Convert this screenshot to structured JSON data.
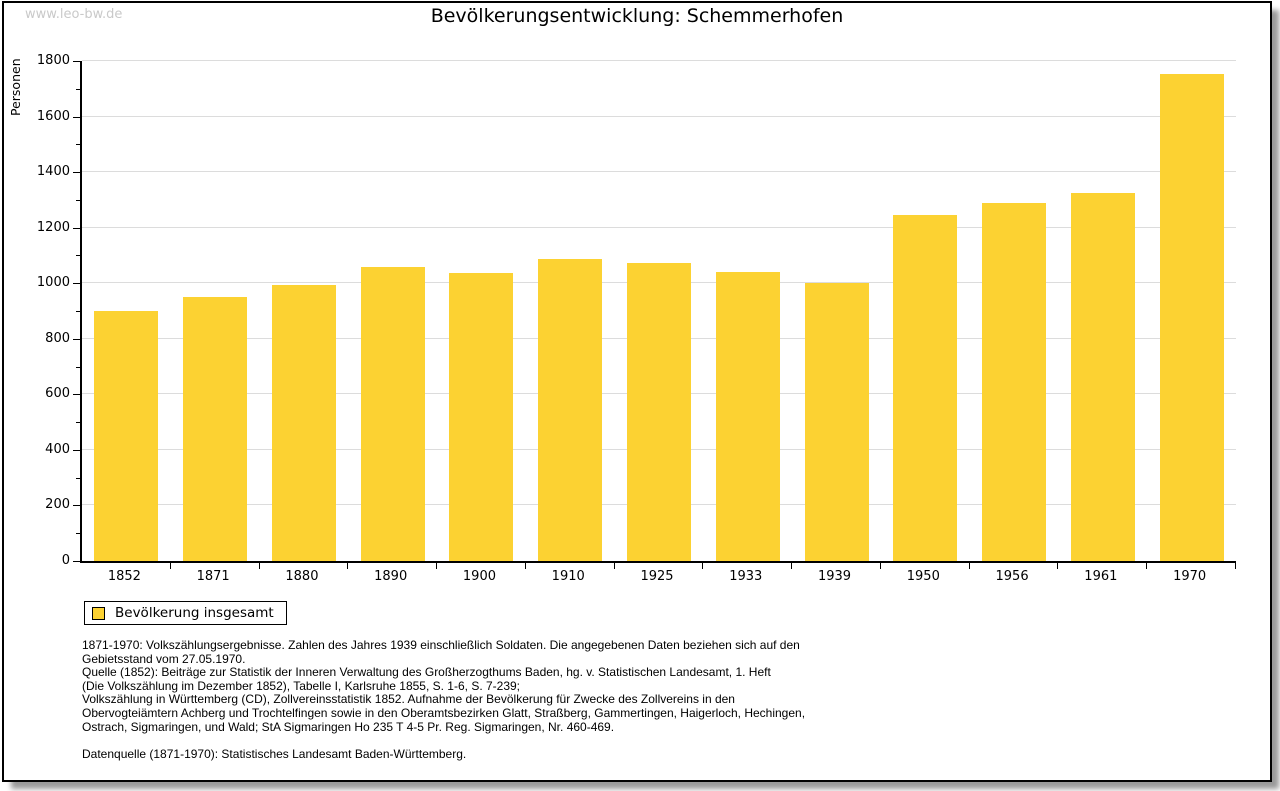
{
  "page": {
    "watermark": "www.leo-bw.de",
    "title": "Bevölkerungsentwicklung: Schemmerhofen"
  },
  "chart_data": {
    "type": "bar",
    "title": "Bevölkerungsentwicklung: Schemmerhofen",
    "xlabel": "",
    "ylabel": "Personen",
    "categories": [
      "1852",
      "1871",
      "1880",
      "1890",
      "1900",
      "1910",
      "1925",
      "1933",
      "1939",
      "1950",
      "1956",
      "1961",
      "1970"
    ],
    "values": [
      900,
      950,
      993,
      1058,
      1036,
      1086,
      1072,
      1040,
      1001,
      1244,
      1288,
      1324,
      1755
    ],
    "series_name": "Bevölkerung insgesamt",
    "ylim": [
      0,
      1800
    ],
    "ytick_step": 200,
    "yminor_step": 100,
    "grid": true,
    "legend_position": "bottom-left",
    "bar_color": "#FCD232",
    "grid_color": "#DCDCDC",
    "axis_color": "#000000"
  },
  "legend": {
    "label": "Bevölkerung insgesamt"
  },
  "footnotes": {
    "lines": [
      "1871-1970: Volkszählungsergebnisse. Zahlen des Jahres 1939 einschließlich Soldaten. Die angegebenen Daten beziehen sich auf den",
      "Gebietsstand vom 27.05.1970.",
      "Quelle (1852): Beiträge zur Statistik der Inneren Verwaltung des Großherzogthums Baden, hg. v. Statistischen Landesamt, 1. Heft",
      "(Die Volkszählung im Dezember 1852), Tabelle I, Karlsruhe 1855, S. 1-6, S. 7-239;",
      "Volkszählung in Württemberg (CD), Zollvereinsstatistik 1852. Aufnahme der Bevölkerung für Zwecke des Zollvereins in den",
      "Obervogteiämtern Achberg und Trochtelfingen sowie in den Oberamtsbezirken Glatt, Straßberg, Gammertingen, Haigerloch, Hechingen,",
      "Ostrach, Sigmaringen, und Wald; StA Sigmaringen Ho 235 T 4-5 Pr. Reg. Sigmaringen, Nr. 460-469."
    ],
    "datasource": "Datenquelle (1871-1970): Statistisches Landesamt Baden-Württemberg."
  }
}
